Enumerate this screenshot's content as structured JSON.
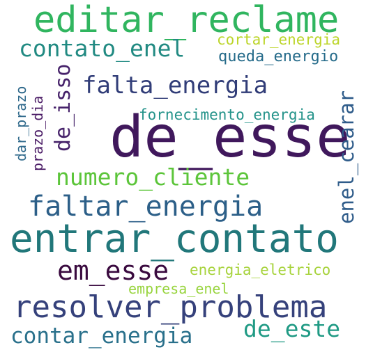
{
  "words": [
    {
      "text": "de_esse",
      "color": "#40185c"
    },
    {
      "text": "entrar_contato",
      "color": "#21777a"
    },
    {
      "text": "editar_reclame",
      "color": "#30b55f"
    },
    {
      "text": "resolver_problema",
      "color": "#35417b"
    },
    {
      "text": "faltar_energia",
      "color": "#2c5f88"
    },
    {
      "text": "falta_energia",
      "color": "#313d78"
    },
    {
      "text": "em_esse",
      "color": "#3a0a3f"
    },
    {
      "text": "contato_enel",
      "color": "#218a82"
    },
    {
      "text": "numero_cliente",
      "color": "#5cc53a"
    },
    {
      "text": "contar_energia",
      "color": "#29708b"
    },
    {
      "text": "de_este",
      "color": "#1f9a84"
    },
    {
      "text": "enel_cearar",
      "color": "#2f5c8a"
    },
    {
      "text": "de_isso",
      "color": "#46226a"
    },
    {
      "text": "cortar_energia",
      "color": "#bcd52a"
    },
    {
      "text": "queda_energio",
      "color": "#256b8a"
    },
    {
      "text": "fornecimento_energia",
      "color": "#24938a"
    },
    {
      "text": "energia_eletrico",
      "color": "#a7d33c"
    },
    {
      "text": "empresa_enel",
      "color": "#98d43e"
    },
    {
      "text": "dar_prazo",
      "color": "#306a8c"
    },
    {
      "text": "prazo_dia",
      "color": "#4b1c66"
    }
  ]
}
